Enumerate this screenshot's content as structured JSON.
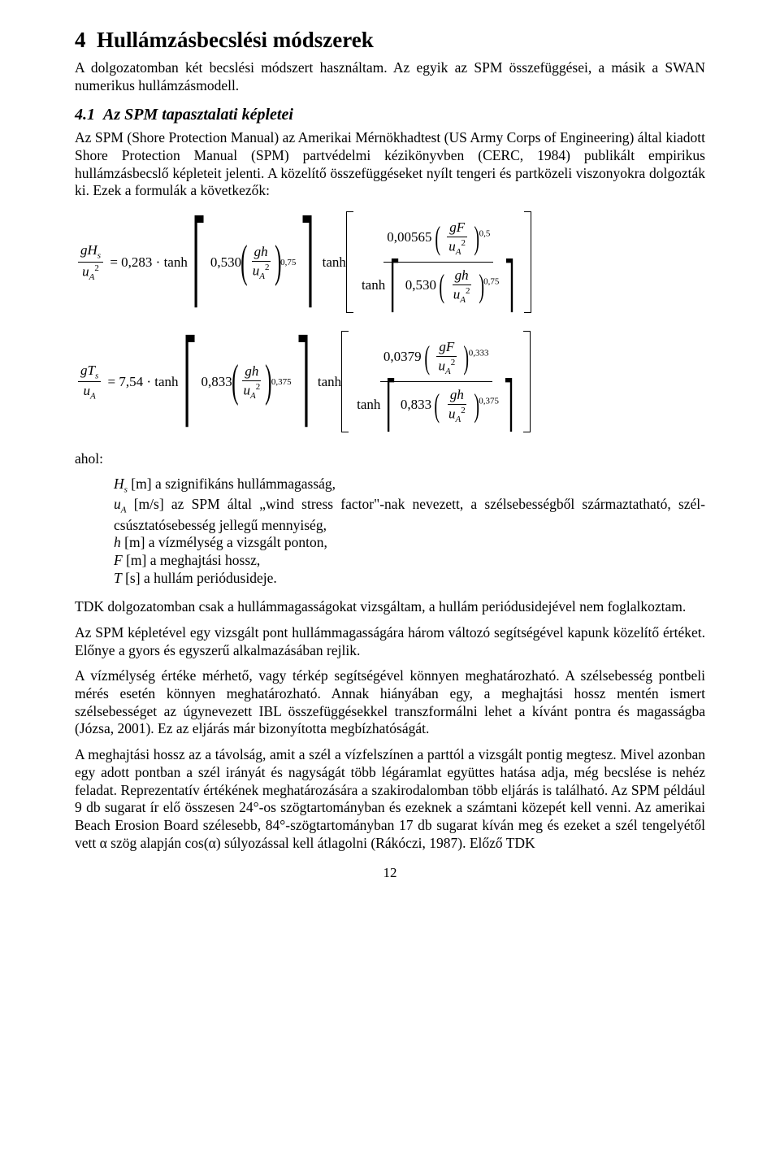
{
  "section": {
    "number": "4",
    "title": "Hullámzásbecslési módszerek",
    "intro": "A dolgozatomban két becslési módszert használtam. Az egyik az SPM összefüggései, a másik a SWAN numerikus hullámzásmodell."
  },
  "sub41": {
    "number": "4.1",
    "title": "Az SPM tapasztalati képletei",
    "p1": "Az SPM (Shore Protection Manual) az Amerikai Mérnökhadtest (US Army Corps of Engineering) által kiadott Shore Protection Manual (SPM) partvédelmi kézikönyvben (CERC, 1984) publikált empirikus hullámzásbecslő képleteit jelenti. A közelítő összefüggéseket nyílt tengeri és partközeli viszonyokra dolgozták ki. Ezek a formulák a következők:"
  },
  "formulaH": {
    "lhs_num": "gH",
    "lhs_num_sub": "s",
    "lhs_den": "u",
    "lhs_den_sub": "A",
    "lhs_den_sup": "2",
    "eq": "=",
    "c1": "0,283",
    "tanh": "tanh",
    "c2": "0,530",
    "gh": "gh",
    "uA": "u",
    "uA_sub": "A",
    "uA_sup": "2",
    "e075": "0,75",
    "c3": "0,00565",
    "gF": "gF",
    "e05": "0,5"
  },
  "formulaT": {
    "lhs_num": "gT",
    "lhs_num_sub": "s",
    "lhs_den": "u",
    "lhs_den_sub": "A",
    "eq": "=",
    "c1": "7,54",
    "tanh": "tanh",
    "c2": "0,833",
    "gh": "gh",
    "uA": "u",
    "uA_sub": "A",
    "uA_sup": "2",
    "e0375": "0,375",
    "c3": "0,0379",
    "gF": "gF",
    "e0333": "0,333"
  },
  "ahol": "ahol:",
  "defs": {
    "Hs_a": "H",
    "Hs_b": " [m] a szignifikáns hullámmagasság,",
    "uA_a": "u",
    "uA_b": " [m/s] az SPM által „wind stress factor\"-nak nevezett, a szélsebességből származtatható, szél-csúsztatósebesség jellegű mennyiség,",
    "h": "h",
    "h_b": " [m] a vízmélység a vizsgált ponton,",
    "F": "F",
    "F_b": " [m] a meghajtási hossz,",
    "T": "T",
    "T_b": " [s] a hullám periódusideje."
  },
  "body": {
    "p2": "TDK dolgozatomban csak a hullámmagasságokat vizsgáltam, a hullám periódusidejével nem foglalkoztam.",
    "p3": "Az SPM képletével egy vizsgált pont hullámmagasságára három változó segítségével kapunk közelítő értéket. Előnye a gyors és egyszerű alkalmazásában rejlik.",
    "p4": "A vízmélység értéke mérhető, vagy térkép segítségével könnyen meghatározható. A szélsebesség pontbeli mérés esetén könnyen meghatározható. Annak hiányában egy, a meghajtási hossz mentén ismert szélsebességet az úgynevezett IBL összefüggésekkel transzformálni lehet a kívánt pontra és magasságba (Józsa, 2001). Ez az eljárás már bizonyította megbízhatóságát.",
    "p5": "A meghajtási hossz az a távolság, amit a szél a vízfelszínen a parttól a vizsgált pontig megtesz. Mivel azonban egy adott pontban a szél irányát és nagyságát több légáramlat együttes hatása adja, még becslése is nehéz feladat. Reprezentatív értékének meghatározására a szakirodalomban több eljárás is található. Az SPM például 9 db sugarat ír elő összesen 24°-os szögtartományban és ezeknek a számtani közepét kell venni. Az amerikai Beach Erosion Board szélesebb, 84°-szögtartományban 17 db sugarat kíván meg és ezeket a szél tengelyétől vett α szög alapján cos(α) súlyozással kell átlagolni (Rákóczi, 1987). Előző TDK"
  },
  "pageNumber": "12"
}
